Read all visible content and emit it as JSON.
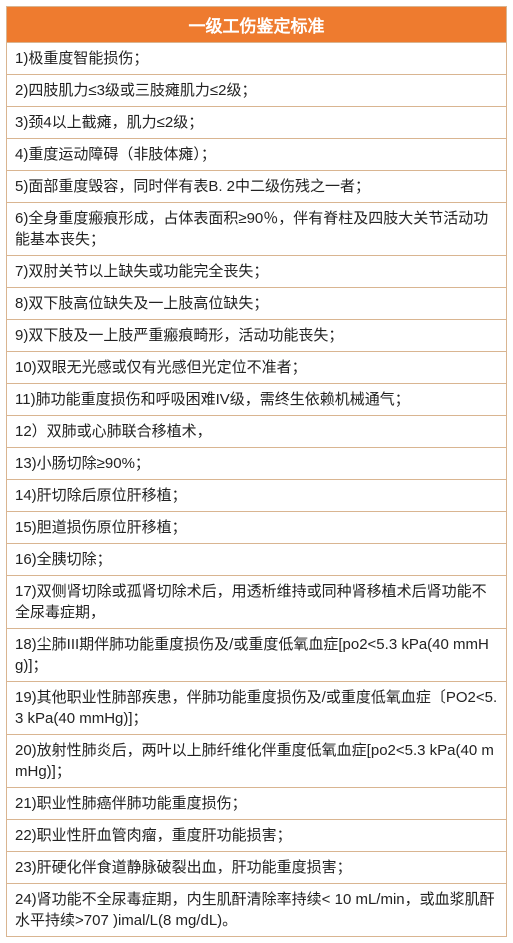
{
  "table": {
    "title": "一级工伤鉴定标准",
    "title_bg": "#ee7b2f",
    "title_color": "#ffffff",
    "title_fontsize": 17,
    "border_color": "#d9b591",
    "cell_bg": "#ffffff",
    "cell_color": "#222222",
    "cell_fontsize": 15,
    "rows": [
      "1)极重度智能损伤；",
      "2)四肢肌力≤3级或三肢瘫肌力≤2级；",
      "3)颈4以上截瘫，肌力≤2级；",
      "4)重度运动障碍（非肢体瘫）；",
      "5)面部重度毁容，同时伴有表B. 2中二级伤残之一者；",
      "6)全身重度瘢痕形成，占体表面积≥90％，伴有脊柱及四肢大关节活动功能基本丧失；",
      "7)双肘关节以上缺失或功能完全丧失；",
      "8)双下肢高位缺失及一上肢高位缺失；",
      "9)双下肢及一上肢严重瘢痕畸形，活动功能丧失；",
      "10)双眼无光感或仅有光感但光定位不准者；",
      "11)肺功能重度损伤和呼吸困难IV级，需终生依赖机械通气；",
      "12）双肺或心肺联合移植术，",
      "13)小肠切除≥90%；",
      "14)肝切除后原位肝移植；",
      "15)胆道损伤原位肝移植；",
      "16)全胰切除；",
      "17)双侧肾切除或孤肾切除术后，用透析维持或同种肾移植术后肾功能不全尿毒症期，",
      "18)尘肺III期伴肺功能重度损伤及/或重度低氧血症[po2<5.3 kPa(40 mmHg)]；",
      "19)其他职业性肺部疾患，伴肺功能重度损伤及/或重度低氧血症〔PO2<5.3 kPa(40 mmHg)]；",
      "20)放射性肺炎后，两叶以上肺纤维化伴重度低氧血症[po2<5.3 kPa(40 mmHg)]；",
      "21)职业性肺癌伴肺功能重度损伤；",
      "22)职业性肝血管肉瘤，重度肝功能损害；",
      "23)肝硬化伴食道静脉破裂出血，肝功能重度损害；",
      "24)肾功能不全尿毒症期，内生肌酐清除率持续< 10 mL/min，或血浆肌酐水平持续>707 )imal/L(8 mg/dL)。"
    ]
  }
}
